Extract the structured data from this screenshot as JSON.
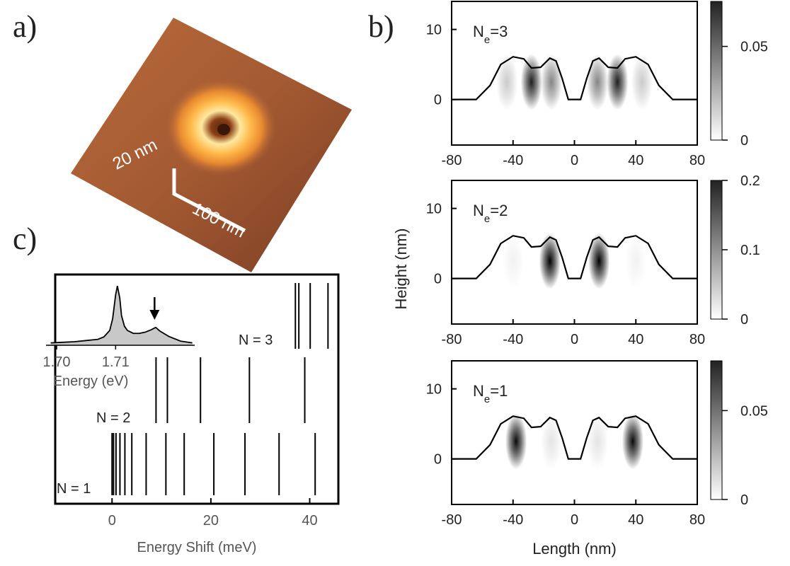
{
  "panel_labels": [
    "a)",
    "b)",
    "c)"
  ],
  "panel_a": {
    "scale_labels": [
      "20 nm",
      "100 nm"
    ]
  },
  "chart_data": [
    {
      "type": "density_profile",
      "annotation": {
        "main": "N",
        "sub": "e",
        "rest": "=3"
      },
      "xlim": [
        -80,
        80
      ],
      "xticks": [
        -80,
        -40,
        0,
        40,
        80
      ],
      "ylim": [
        -6.5,
        14
      ],
      "yticks": [
        0,
        10
      ],
      "profile": {
        "x": [
          -80,
          -64,
          -55,
          -48,
          -40,
          -33,
          -28,
          -22,
          -16,
          -12,
          -8,
          -4,
          0,
          4,
          8,
          12,
          16,
          22,
          28,
          33,
          40,
          48,
          55,
          64,
          80
        ],
        "values": [
          0,
          0,
          2,
          5,
          6.1,
          5.8,
          4.5,
          4.6,
          5.9,
          5.5,
          3,
          0,
          0,
          0,
          3,
          5.5,
          5.9,
          4.6,
          4.5,
          5.8,
          6.1,
          5,
          2,
          0,
          0
        ]
      },
      "spots": {
        "x": [
          -44,
          -28,
          -15,
          15,
          28,
          44
        ],
        "values": [
          0.015,
          0.065,
          0.035,
          0.035,
          0.065,
          0.015
        ]
      },
      "spot_height": 2.5,
      "clim": [
        0,
        0.074
      ],
      "cticks": [
        0,
        0.05
      ],
      "color": "#000000"
    },
    {
      "type": "density_profile",
      "annotation": {
        "main": "N",
        "sub": "e",
        "rest": "=2"
      },
      "y_label": "Height (nm)",
      "xlim": [
        -80,
        80
      ],
      "xticks": [
        -80,
        -40,
        0,
        40,
        80
      ],
      "ylim": [
        -6.5,
        14
      ],
      "yticks": [
        0,
        10
      ],
      "profile": {
        "x": [
          -80,
          -64,
          -55,
          -48,
          -40,
          -33,
          -28,
          -22,
          -16,
          -12,
          -8,
          -4,
          0,
          4,
          8,
          12,
          16,
          22,
          28,
          33,
          40,
          48,
          55,
          64,
          80
        ],
        "values": [
          0,
          0,
          2,
          5,
          6.1,
          5.8,
          4.5,
          4.6,
          5.9,
          5.5,
          3,
          0,
          0,
          0,
          3,
          5.5,
          5.9,
          4.6,
          4.5,
          5.8,
          6.1,
          5,
          2,
          0,
          0
        ]
      },
      "spots": {
        "x": [
          -40,
          -16,
          16,
          40
        ],
        "values": [
          0.01,
          0.2,
          0.2,
          0.01
        ]
      },
      "spot_height": 2.5,
      "clim": [
        0,
        0.2
      ],
      "cticks": [
        0,
        0.1,
        0.2
      ],
      "color": "#000000"
    },
    {
      "type": "density_profile",
      "annotation": {
        "main": "N",
        "sub": "e",
        "rest": "=1"
      },
      "x_label": "Length (nm)",
      "xlim": [
        -80,
        80
      ],
      "xticks": [
        -80,
        -40,
        0,
        40,
        80
      ],
      "ylim": [
        -6.5,
        14
      ],
      "yticks": [
        0,
        10
      ],
      "profile": {
        "x": [
          -80,
          -64,
          -55,
          -48,
          -40,
          -33,
          -28,
          -22,
          -16,
          -12,
          -8,
          -4,
          0,
          4,
          8,
          12,
          16,
          22,
          28,
          33,
          40,
          48,
          55,
          64,
          80
        ],
        "values": [
          0,
          0,
          2,
          5,
          6.1,
          5.8,
          4.5,
          4.6,
          5.9,
          5.5,
          3,
          0,
          0,
          0,
          3,
          5.5,
          5.9,
          4.6,
          4.5,
          5.8,
          6.1,
          5,
          2,
          0,
          0
        ]
      },
      "spots": {
        "x": [
          -38,
          -15,
          15,
          38
        ],
        "values": [
          0.075,
          0.008,
          0.008,
          0.075
        ]
      },
      "spot_height": 2.5,
      "clim": [
        0,
        0.078
      ],
      "cticks": [
        0,
        0.05
      ],
      "color": "#000000"
    },
    {
      "type": "stick_spectrum",
      "x_label": "Energy Shift (meV)",
      "xlim": [
        -11.5,
        45.8
      ],
      "xticks": [
        0,
        20,
        40
      ],
      "series": [
        {
          "name": "N = 1",
          "color": "#000000",
          "values": [
            0,
            0.3,
            0.8,
            1.6,
            2.6,
            4.0,
            6.9,
            10.9,
            14.6,
            20.6,
            26.9,
            33.8,
            41.1
          ]
        },
        {
          "name": "N = 2",
          "color": "#000000",
          "values": [
            8.9,
            11.2,
            17.9,
            27.8,
            39.0
          ]
        },
        {
          "name": "N = 3",
          "color": "#000000",
          "values": [
            37.1,
            37.8,
            40.1,
            43.7
          ]
        }
      ],
      "inset": {
        "type": "area",
        "x_label": "Energy (eV)",
        "x": [
          1.699,
          1.701,
          1.703,
          1.705,
          1.707,
          1.708,
          1.709,
          1.7095,
          1.71,
          1.7103,
          1.7107,
          1.711,
          1.7115,
          1.712,
          1.713,
          1.714,
          1.715,
          1.716,
          1.7168,
          1.7175,
          1.719,
          1.721,
          1.723
        ],
        "values": [
          0.04,
          0.05,
          0.06,
          0.08,
          0.1,
          0.14,
          0.25,
          0.45,
          0.85,
          1.0,
          0.8,
          0.5,
          0.32,
          0.25,
          0.2,
          0.2,
          0.22,
          0.26,
          0.3,
          0.24,
          0.15,
          0.07,
          0.04
        ],
        "xlim": [
          1.6982,
          1.7234
        ],
        "ylim": [
          0,
          1.05
        ],
        "xticks": [
          {
            "value": 1.7,
            "label": "1.70"
          },
          1.71
        ],
        "arrow_at": 1.7166,
        "color": "#c8c8c8"
      }
    }
  ]
}
